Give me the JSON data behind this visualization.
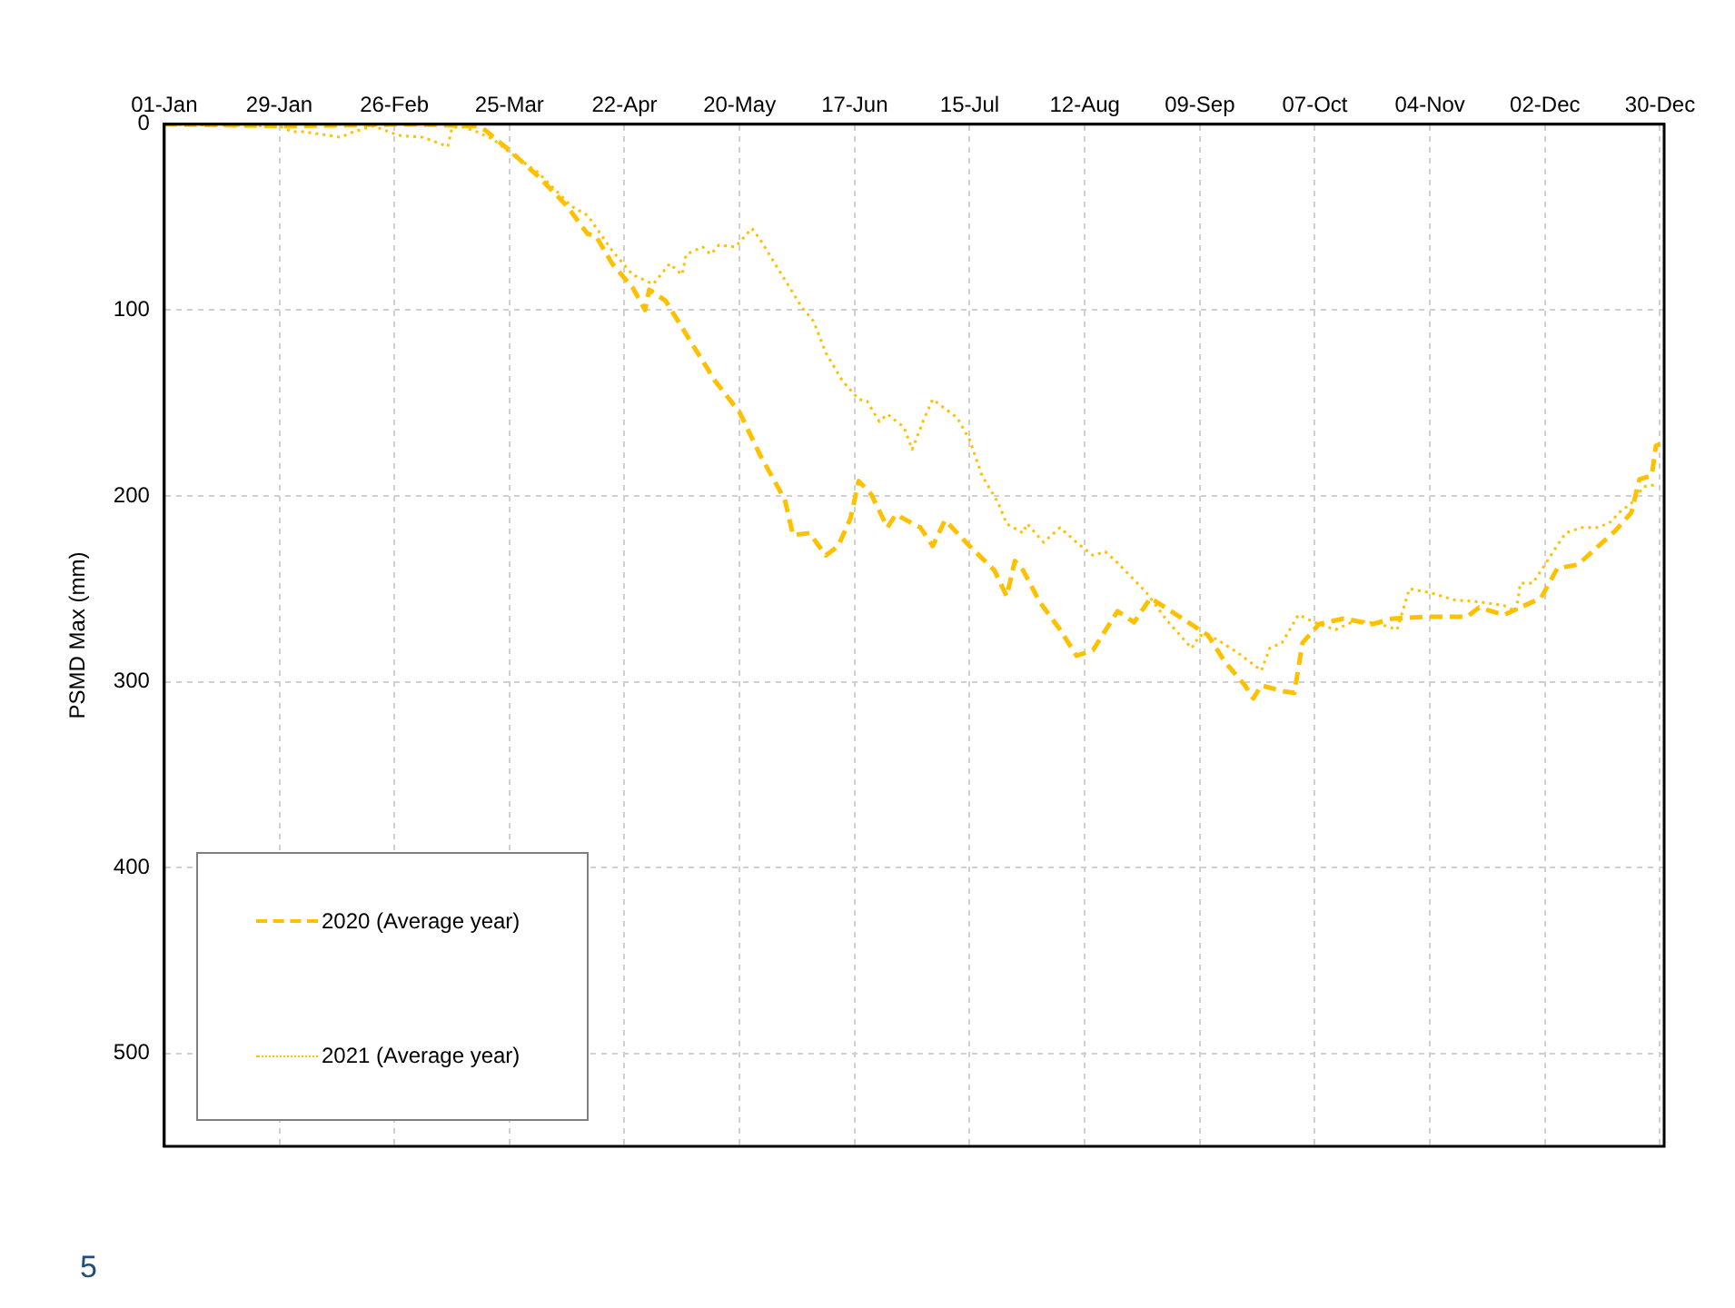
{
  "chart_data": {
    "type": "line",
    "ylabel": "PSMD Max (mm)",
    "xlim": [
      "--01-01",
      "--12-31"
    ],
    "xticks": [
      {
        "value": "--01-01",
        "label": "01-Jan"
      },
      {
        "value": "--01-29",
        "label": "29-Jan"
      },
      {
        "value": "--02-26",
        "label": "26-Feb"
      },
      {
        "value": "--03-25",
        "label": "25-Mar"
      },
      {
        "value": "--04-22",
        "label": "22-Apr"
      },
      {
        "value": "--05-20",
        "label": "20-May"
      },
      {
        "value": "--06-17",
        "label": "17-Jun"
      },
      {
        "value": "--07-15",
        "label": "15-Jul"
      },
      {
        "value": "--08-12",
        "label": "12-Aug"
      },
      {
        "value": "--09-09",
        "label": "09-Sep"
      },
      {
        "value": "--10-07",
        "label": "07-Oct"
      },
      {
        "value": "--11-04",
        "label": "04-Nov"
      },
      {
        "value": "--12-02",
        "label": "02-Dec"
      },
      {
        "value": "--12-30",
        "label": "30-Dec"
      }
    ],
    "ylim": [
      550,
      0
    ],
    "yticks": [
      0,
      100,
      200,
      300,
      400,
      500
    ],
    "grid": true,
    "legend": "bottom left",
    "marker": "none",
    "series": [
      {
        "name": "2020 (Average year)",
        "color": "#ffc000",
        "line_style": "dashed",
        "x": [
          "--01-01",
          "--01-31",
          "--03-01",
          "--03-17",
          "--03-19",
          "--03-25",
          "--04-01",
          "--04-08",
          "--04-13",
          "--04-15",
          "--04-19",
          "--04-24",
          "--04-27",
          "--04-28",
          "--05-02",
          "--05-07",
          "--05-14",
          "--05-20",
          "--05-25",
          "--05-31",
          "--06-02",
          "--06-06",
          "--06-10",
          "--06-13",
          "--06-16",
          "--06-18",
          "--06-21",
          "--06-25",
          "--06-27",
          "--07-03",
          "--07-06",
          "--07-09",
          "--07-15",
          "--07-21",
          "--07-24",
          "--07-26",
          "--07-28",
          "--08-01",
          "--08-06",
          "--08-10",
          "--08-14",
          "--08-20",
          "--08-24",
          "--08-28",
          "--09-02",
          "--09-11",
          "--09-15",
          "--09-20",
          "--09-22",
          "--09-24",
          "--09-29",
          "--10-02",
          "--10-04",
          "--10-08",
          "--10-14",
          "--10-21",
          "--10-26",
          "--11-04",
          "--11-13",
          "--11-16",
          "--11-22",
          "--12-01",
          "--12-05",
          "--12-10",
          "--12-14",
          "--12-19",
          "--12-23",
          "--12-25",
          "--12-28",
          "--12-29",
          "--12-30"
        ],
        "values": [
          0,
          1,
          0,
          1,
          3,
          14,
          28,
          44,
          59,
          60,
          75,
          88,
          100,
          89,
          95,
          113,
          138,
          155,
          178,
          202,
          221,
          220,
          232,
          227,
          212,
          192,
          199,
          217,
          210,
          217,
          227,
          213,
          227,
          240,
          254,
          235,
          240,
          257,
          272,
          286,
          283,
          262,
          268,
          255,
          262,
          275,
          289,
          302,
          309,
          302,
          305,
          306,
          279,
          269,
          266,
          269,
          266,
          265,
          265,
          260,
          264,
          255,
          239,
          237,
          229,
          219,
          209,
          191,
          189,
          173,
          172
        ]
      },
      {
        "name": "2021 (Average year)",
        "color": "#ffc000",
        "line_style": "dotted",
        "x": [
          "--01-01",
          "--01-29",
          "--02-01",
          "--02-04",
          "--02-13",
          "--02-16",
          "--02-21",
          "--02-27",
          "--03-04",
          "--03-10",
          "--03-11",
          "--03-13",
          "--03-17",
          "--03-21",
          "--03-25",
          "--04-01",
          "--04-09",
          "--04-13",
          "--04-19",
          "--04-24",
          "--04-29",
          "--05-03",
          "--05-06",
          "--05-07",
          "--05-11",
          "--05-13",
          "--05-15",
          "--05-19",
          "--05-23",
          "--05-25",
          "--05-30",
          "--06-04",
          "--06-07",
          "--06-10",
          "--06-14",
          "--06-18",
          "--06-20",
          "--06-23",
          "--06-25",
          "--06-29",
          "--07-01",
          "--07-04",
          "--07-06",
          "--07-09",
          "--07-12",
          "--07-15",
          "--07-18",
          "--07-22",
          "--07-24",
          "--07-28",
          "--07-29",
          "--08-02",
          "--08-06",
          "--08-10",
          "--08-14",
          "--08-17",
          "--08-20",
          "--08-27",
          "--09-01",
          "--09-07",
          "--09-09",
          "--09-13",
          "--09-18",
          "--09-24",
          "--09-26",
          "--09-29",
          "--10-03",
          "--10-08",
          "--10-12",
          "--10-17",
          "--10-23",
          "--10-27",
          "--10-30",
          "--11-04",
          "--11-10",
          "--11-16",
          "--11-22",
          "--11-25",
          "--11-26",
          "--11-29",
          "--12-02",
          "--12-04",
          "--12-07",
          "--12-11",
          "--12-15",
          "--12-18",
          "--12-20",
          "--12-23",
          "--12-26",
          "--12-29"
        ],
        "values": [
          0,
          1,
          4,
          4,
          7,
          4,
          1,
          6,
          7,
          12,
          2,
          1,
          4,
          8,
          15,
          26,
          44,
          49,
          68,
          81,
          86,
          75,
          81,
          70,
          66,
          70,
          65,
          66,
          56,
          62,
          80,
          98,
          106,
          123,
          138,
          148,
          149,
          160,
          156,
          163,
          175,
          158,
          148,
          153,
          158,
          170,
          189,
          204,
          215,
          220,
          215,
          225,
          217,
          225,
          232,
          230,
          236,
          252,
          267,
          282,
          275,
          277,
          284,
          294,
          282,
          279,
          264,
          269,
          272,
          267,
          269,
          272,
          250,
          252,
          256,
          257,
          259,
          262,
          247,
          247,
          237,
          230,
          220,
          217,
          217,
          214,
          209,
          204,
          195,
          194
        ]
      }
    ],
    "annotations": [
      "5"
    ]
  }
}
